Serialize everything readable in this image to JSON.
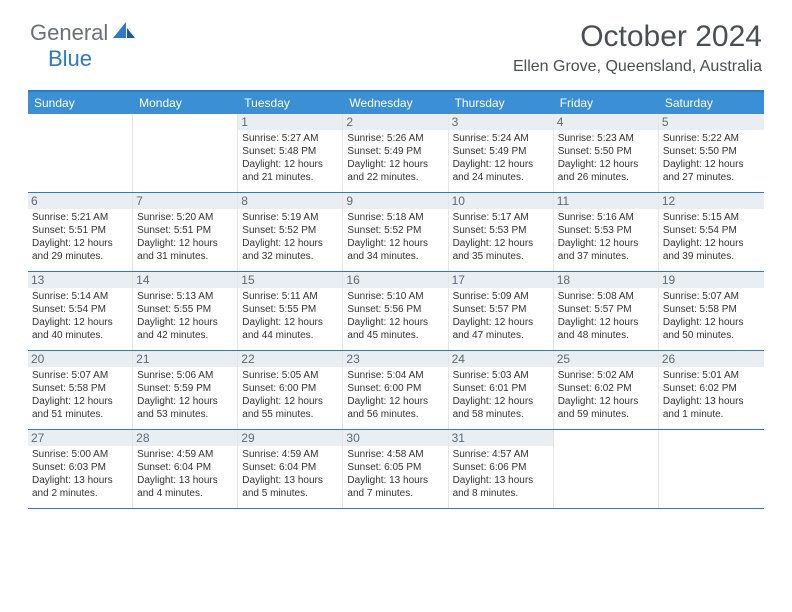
{
  "logo": {
    "text1": "General",
    "text2": "Blue"
  },
  "title": "October 2024",
  "location": "Ellen Grove, Queensland, Australia",
  "colors": {
    "header_bg": "#3b8fd4",
    "accent": "#2f7bbf",
    "daynum_bg": "#e9eef2",
    "text": "#333333"
  },
  "day_names": [
    "Sunday",
    "Monday",
    "Tuesday",
    "Wednesday",
    "Thursday",
    "Friday",
    "Saturday"
  ],
  "weeks": [
    [
      {
        "empty": true
      },
      {
        "empty": true
      },
      {
        "day": "1",
        "sunrise": "Sunrise: 5:27 AM",
        "sunset": "Sunset: 5:48 PM",
        "daylight": "Daylight: 12 hours and 21 minutes."
      },
      {
        "day": "2",
        "sunrise": "Sunrise: 5:26 AM",
        "sunset": "Sunset: 5:49 PM",
        "daylight": "Daylight: 12 hours and 22 minutes."
      },
      {
        "day": "3",
        "sunrise": "Sunrise: 5:24 AM",
        "sunset": "Sunset: 5:49 PM",
        "daylight": "Daylight: 12 hours and 24 minutes."
      },
      {
        "day": "4",
        "sunrise": "Sunrise: 5:23 AM",
        "sunset": "Sunset: 5:50 PM",
        "daylight": "Daylight: 12 hours and 26 minutes."
      },
      {
        "day": "5",
        "sunrise": "Sunrise: 5:22 AM",
        "sunset": "Sunset: 5:50 PM",
        "daylight": "Daylight: 12 hours and 27 minutes."
      }
    ],
    [
      {
        "day": "6",
        "sunrise": "Sunrise: 5:21 AM",
        "sunset": "Sunset: 5:51 PM",
        "daylight": "Daylight: 12 hours and 29 minutes."
      },
      {
        "day": "7",
        "sunrise": "Sunrise: 5:20 AM",
        "sunset": "Sunset: 5:51 PM",
        "daylight": "Daylight: 12 hours and 31 minutes."
      },
      {
        "day": "8",
        "sunrise": "Sunrise: 5:19 AM",
        "sunset": "Sunset: 5:52 PM",
        "daylight": "Daylight: 12 hours and 32 minutes."
      },
      {
        "day": "9",
        "sunrise": "Sunrise: 5:18 AM",
        "sunset": "Sunset: 5:52 PM",
        "daylight": "Daylight: 12 hours and 34 minutes."
      },
      {
        "day": "10",
        "sunrise": "Sunrise: 5:17 AM",
        "sunset": "Sunset: 5:53 PM",
        "daylight": "Daylight: 12 hours and 35 minutes."
      },
      {
        "day": "11",
        "sunrise": "Sunrise: 5:16 AM",
        "sunset": "Sunset: 5:53 PM",
        "daylight": "Daylight: 12 hours and 37 minutes."
      },
      {
        "day": "12",
        "sunrise": "Sunrise: 5:15 AM",
        "sunset": "Sunset: 5:54 PM",
        "daylight": "Daylight: 12 hours and 39 minutes."
      }
    ],
    [
      {
        "day": "13",
        "sunrise": "Sunrise: 5:14 AM",
        "sunset": "Sunset: 5:54 PM",
        "daylight": "Daylight: 12 hours and 40 minutes."
      },
      {
        "day": "14",
        "sunrise": "Sunrise: 5:13 AM",
        "sunset": "Sunset: 5:55 PM",
        "daylight": "Daylight: 12 hours and 42 minutes."
      },
      {
        "day": "15",
        "sunrise": "Sunrise: 5:11 AM",
        "sunset": "Sunset: 5:55 PM",
        "daylight": "Daylight: 12 hours and 44 minutes."
      },
      {
        "day": "16",
        "sunrise": "Sunrise: 5:10 AM",
        "sunset": "Sunset: 5:56 PM",
        "daylight": "Daylight: 12 hours and 45 minutes."
      },
      {
        "day": "17",
        "sunrise": "Sunrise: 5:09 AM",
        "sunset": "Sunset: 5:57 PM",
        "daylight": "Daylight: 12 hours and 47 minutes."
      },
      {
        "day": "18",
        "sunrise": "Sunrise: 5:08 AM",
        "sunset": "Sunset: 5:57 PM",
        "daylight": "Daylight: 12 hours and 48 minutes."
      },
      {
        "day": "19",
        "sunrise": "Sunrise: 5:07 AM",
        "sunset": "Sunset: 5:58 PM",
        "daylight": "Daylight: 12 hours and 50 minutes."
      }
    ],
    [
      {
        "day": "20",
        "sunrise": "Sunrise: 5:07 AM",
        "sunset": "Sunset: 5:58 PM",
        "daylight": "Daylight: 12 hours and 51 minutes."
      },
      {
        "day": "21",
        "sunrise": "Sunrise: 5:06 AM",
        "sunset": "Sunset: 5:59 PM",
        "daylight": "Daylight: 12 hours and 53 minutes."
      },
      {
        "day": "22",
        "sunrise": "Sunrise: 5:05 AM",
        "sunset": "Sunset: 6:00 PM",
        "daylight": "Daylight: 12 hours and 55 minutes."
      },
      {
        "day": "23",
        "sunrise": "Sunrise: 5:04 AM",
        "sunset": "Sunset: 6:00 PM",
        "daylight": "Daylight: 12 hours and 56 minutes."
      },
      {
        "day": "24",
        "sunrise": "Sunrise: 5:03 AM",
        "sunset": "Sunset: 6:01 PM",
        "daylight": "Daylight: 12 hours and 58 minutes."
      },
      {
        "day": "25",
        "sunrise": "Sunrise: 5:02 AM",
        "sunset": "Sunset: 6:02 PM",
        "daylight": "Daylight: 12 hours and 59 minutes."
      },
      {
        "day": "26",
        "sunrise": "Sunrise: 5:01 AM",
        "sunset": "Sunset: 6:02 PM",
        "daylight": "Daylight: 13 hours and 1 minute."
      }
    ],
    [
      {
        "day": "27",
        "sunrise": "Sunrise: 5:00 AM",
        "sunset": "Sunset: 6:03 PM",
        "daylight": "Daylight: 13 hours and 2 minutes."
      },
      {
        "day": "28",
        "sunrise": "Sunrise: 4:59 AM",
        "sunset": "Sunset: 6:04 PM",
        "daylight": "Daylight: 13 hours and 4 minutes."
      },
      {
        "day": "29",
        "sunrise": "Sunrise: 4:59 AM",
        "sunset": "Sunset: 6:04 PM",
        "daylight": "Daylight: 13 hours and 5 minutes."
      },
      {
        "day": "30",
        "sunrise": "Sunrise: 4:58 AM",
        "sunset": "Sunset: 6:05 PM",
        "daylight": "Daylight: 13 hours and 7 minutes."
      },
      {
        "day": "31",
        "sunrise": "Sunrise: 4:57 AM",
        "sunset": "Sunset: 6:06 PM",
        "daylight": "Daylight: 13 hours and 8 minutes."
      },
      {
        "empty": true
      },
      {
        "empty": true
      }
    ]
  ]
}
